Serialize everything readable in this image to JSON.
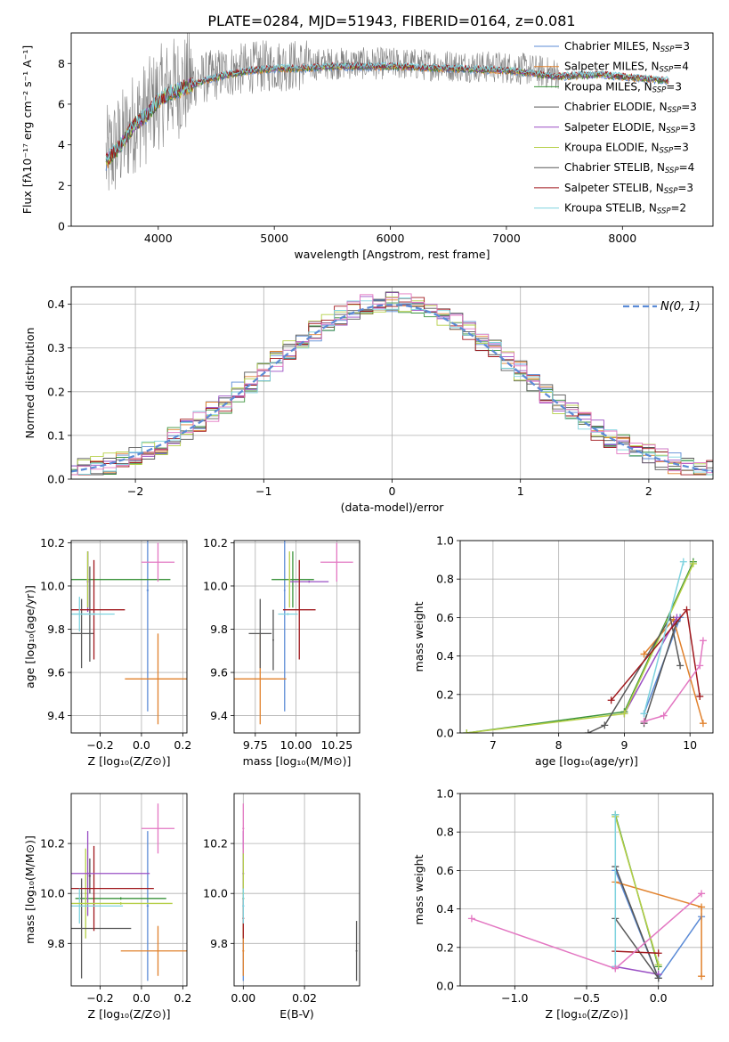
{
  "title": "PLATE=0284, MJD=51943, FIBERID=0164, z=0.081",
  "colors": {
    "chabrier_miles": "#5b8bd6",
    "salpeter_miles": "#e1812c",
    "kroupa_miles": "#3a923a",
    "chabrier_elodie": "#555555",
    "salpeter_elodie": "#9a4fc4",
    "kroupa_elodie": "#b5cf47",
    "chabrier_stelib": "#595959",
    "salpeter_stelib": "#a0181d",
    "kroupa_stelib": "#7fd3df",
    "pink": "#e377c2",
    "grid": "#b0b0b0",
    "spectrum_data": "#808080",
    "gaussian": "#5b8bd6"
  },
  "chart_data": [
    {
      "id": "spectrum",
      "type": "line",
      "xlabel": "wavelength [Angstrom, rest frame]",
      "ylabel": "Flux [fλ10⁻¹⁷ erg cm⁻² s⁻¹ A⁻¹]",
      "xlim": [
        3250,
        8780
      ],
      "ylim": [
        0,
        9.5
      ],
      "xticks": [
        4000,
        5000,
        6000,
        7000,
        8000
      ],
      "yticks": [
        0,
        2,
        4,
        6,
        8
      ],
      "grid": false,
      "legend_position": "top-right",
      "legend": [
        {
          "label": "Chabrier MILES, N",
          "sub": "SSP",
          "value": "=3"
        },
        {
          "label": "Salpeter MILES, N",
          "sub": "SSP",
          "value": "=4"
        },
        {
          "label": "Kroupa MILES, N",
          "sub": "SSP",
          "value": "=3"
        },
        {
          "label": "Chabrier ELODIE, N",
          "sub": "SSP",
          "value": "=3"
        },
        {
          "label": "Salpeter ELODIE, N",
          "sub": "SSP",
          "value": "=3"
        },
        {
          "label": "Kroupa ELODIE, N",
          "sub": "SSP",
          "value": "=3"
        },
        {
          "label": "Chabrier STELIB, N",
          "sub": "SSP",
          "value": "=4"
        },
        {
          "label": "Salpeter STELIB, N",
          "sub": "SSP",
          "value": "=3"
        },
        {
          "label": "Kroupa STELIB, N",
          "sub": "SSP",
          "value": "=2"
        }
      ],
      "continuum": {
        "wavelength": [
          3550,
          3700,
          3800,
          3900,
          4000,
          4100,
          4200,
          4400,
          4600,
          4800,
          5000,
          5200,
          5500,
          6000,
          6500,
          7000,
          7200,
          7400,
          7800,
          8200,
          8400
        ],
        "flux": [
          3.3,
          4.3,
          5.2,
          5.6,
          6.3,
          6.7,
          6.9,
          7.3,
          7.6,
          7.8,
          7.9,
          7.9,
          8.0,
          8.0,
          7.9,
          7.8,
          7.7,
          7.5,
          7.6,
          7.4,
          7.3
        ]
      },
      "data_range": [
        3550,
        7450
      ],
      "model_range": [
        3550,
        8400
      ]
    },
    {
      "id": "residuals",
      "type": "line",
      "xlabel": "(data-model)/error",
      "ylabel": "Normed distribution",
      "xlim": [
        -2.5,
        2.5
      ],
      "ylim": [
        0,
        0.44
      ],
      "xticks": [
        -2,
        -1,
        0,
        1,
        2
      ],
      "yticks": [
        0.0,
        0.1,
        0.2,
        0.3,
        0.4
      ],
      "grid": true,
      "legend_position": "top-right",
      "gaussian_label": "N(0, 1)",
      "bin_width": 0.1
    },
    {
      "id": "age_vs_Z",
      "type": "scatter",
      "xlabel": "Z [log₁₀(Z/Z⊙)]",
      "ylabel": "age  [log₁₀(age/yr)]",
      "xlim": [
        -0.34,
        0.22
      ],
      "ylim": [
        9.32,
        10.21
      ],
      "xticks": [
        -0.2,
        0.0,
        0.2
      ],
      "yticks": [
        9.4,
        9.6,
        9.8,
        10.0,
        10.2
      ],
      "grid": true,
      "points": [
        {
          "model": "chabrier_miles",
          "x": 0.03,
          "y": 9.98,
          "xerr": 0.005,
          "yerr": 0.56
        },
        {
          "model": "salpeter_miles",
          "x": 0.08,
          "y": 9.57,
          "xerr": 0.16,
          "yerr": 0.21
        },
        {
          "model": "kroupa_miles",
          "x": -0.26,
          "y": 10.03,
          "xerr": 0.4,
          "yerr": 0.13
        },
        {
          "model": "chabrier_elodie",
          "x": -0.25,
          "y": 9.87,
          "xerr": 0.005,
          "yerr": 0.22
        },
        {
          "model": "salpeter_elodie",
          "x": -0.26,
          "y": 10.02,
          "xerr": 0.005,
          "yerr": 0.14
        },
        {
          "model": "kroupa_elodie",
          "x": -0.26,
          "y": 10.03,
          "xerr": 0.005,
          "yerr": 0.13
        },
        {
          "model": "chabrier_stelib",
          "x": -0.29,
          "y": 9.78,
          "xerr": 0.06,
          "yerr": 0.16
        },
        {
          "model": "salpeter_stelib",
          "x": -0.23,
          "y": 9.89,
          "xerr": 0.15,
          "yerr": 0.23
        },
        {
          "model": "kroupa_stelib",
          "x": -0.3,
          "y": 9.87,
          "xerr": 0.07,
          "yerr": 0.08
        },
        {
          "model": "kroupa_stelib",
          "x": -0.23,
          "y": 9.87,
          "xerr": 0.1,
          "yerr": 0.005
        },
        {
          "model": "pink",
          "x": 0.08,
          "y": 10.11,
          "xerr": 0.08,
          "yerr": 0.09
        }
      ]
    },
    {
      "id": "age_vs_mass",
      "type": "scatter",
      "xlabel": "mass [log₁₀(M/M⊙)]",
      "ylabel": "",
      "xlim": [
        9.62,
        10.39
      ],
      "ylim": [
        9.32,
        10.21
      ],
      "xticks": [
        9.75,
        10.0,
        10.25
      ],
      "yticks": [
        9.4,
        9.6,
        9.8,
        10.0,
        10.2
      ],
      "grid": true,
      "points": [
        {
          "model": "chabrier_miles",
          "x": 9.93,
          "y": 9.98,
          "xerr": 0.005,
          "yerr": 0.56
        },
        {
          "model": "salpeter_miles",
          "x": 9.78,
          "y": 9.57,
          "xerr": 0.16,
          "yerr": 0.21
        },
        {
          "model": "kroupa_miles",
          "x": 9.98,
          "y": 10.03,
          "xerr": 0.13,
          "yerr": 0.13
        },
        {
          "model": "chabrier_elodie",
          "x": 9.86,
          "y": 9.75,
          "xerr": 0.005,
          "yerr": 0.14
        },
        {
          "model": "salpeter_elodie",
          "x": 10.08,
          "y": 10.02,
          "xerr": 0.12,
          "yerr": 0.005
        },
        {
          "model": "kroupa_elodie",
          "x": 9.96,
          "y": 10.03,
          "xerr": 0.005,
          "yerr": 0.13
        },
        {
          "model": "chabrier_stelib",
          "x": 9.78,
          "y": 9.78,
          "xerr": 0.07,
          "yerr": 0.16
        },
        {
          "model": "salpeter_stelib",
          "x": 10.02,
          "y": 9.89,
          "xerr": 0.1,
          "yerr": 0.23
        },
        {
          "model": "kroupa_stelib",
          "x": 9.95,
          "y": 9.87,
          "xerr": 0.06,
          "yerr": 0.005
        },
        {
          "model": "pink",
          "x": 10.25,
          "y": 10.11,
          "xerr": 0.1,
          "yerr": 0.09
        }
      ]
    },
    {
      "id": "weight_vs_age",
      "type": "line",
      "xlabel": "age  [log₁₀(age/yr)]",
      "ylabel": "mass weight",
      "xlim": [
        6.5,
        10.35
      ],
      "ylim": [
        0,
        1.0
      ],
      "xticks": [
        7,
        8,
        9,
        10
      ],
      "yticks": [
        0.0,
        0.2,
        0.4,
        0.6,
        0.8,
        1.0
      ],
      "grid": true,
      "series": [
        {
          "model": "chabrier_miles",
          "x": [
            9.3,
            9.85
          ],
          "y": [
            0.1,
            0.6
          ]
        },
        {
          "model": "salpeter_miles",
          "x": [
            9.3,
            9.75,
            10.2
          ],
          "y": [
            0.41,
            0.59,
            0.05
          ]
        },
        {
          "model": "kroupa_miles",
          "x": [
            6.6,
            9.0,
            10.05
          ],
          "y": [
            0.0,
            0.11,
            0.89
          ]
        },
        {
          "model": "chabrier_elodie",
          "x": [
            9.3,
            9.8
          ],
          "y": [
            0.05,
            0.58
          ]
        },
        {
          "model": "salpeter_elodie",
          "x": [
            9.0,
            9.8
          ],
          "y": [
            0.1,
            0.6
          ]
        },
        {
          "model": "kroupa_elodie",
          "x": [
            6.6,
            9.0,
            10.05
          ],
          "y": [
            0.0,
            0.1,
            0.88
          ]
        },
        {
          "model": "chabrier_stelib",
          "x": [
            8.45,
            8.7,
            9.7,
            9.85
          ],
          "y": [
            0.0,
            0.04,
            0.6,
            0.35
          ]
        },
        {
          "model": "salpeter_stelib",
          "x": [
            8.8,
            9.95,
            10.15
          ],
          "y": [
            0.17,
            0.64,
            0.19
          ]
        },
        {
          "model": "kroupa_stelib",
          "x": [
            9.3,
            9.9
          ],
          "y": [
            0.1,
            0.89
          ]
        },
        {
          "model": "pink",
          "x": [
            9.3,
            9.6,
            10.15,
            10.2
          ],
          "y": [
            0.06,
            0.09,
            0.35,
            0.48
          ]
        }
      ]
    },
    {
      "id": "mass_vs_Z",
      "type": "scatter",
      "xlabel": "Z [log₁₀(Z/Z⊙)]",
      "ylabel": "mass [log₁₀(M/M⊙)]",
      "xlim": [
        -0.34,
        0.22
      ],
      "ylim": [
        9.63,
        10.4
      ],
      "xticks": [
        -0.2,
        0.0,
        0.2
      ],
      "yticks": [
        9.8,
        10.0,
        10.2
      ],
      "grid": true,
      "points": [
        {
          "model": "chabrier_miles",
          "x": 0.03,
          "y": 9.95,
          "xerr": 0.005,
          "yerr": 0.3
        },
        {
          "model": "salpeter_miles",
          "x": 0.08,
          "y": 9.77,
          "xerr": 0.18,
          "yerr": 0.1
        },
        {
          "model": "kroupa_miles",
          "x": -0.1,
          "y": 9.98,
          "xerr": 0.22,
          "yerr": 0.005
        },
        {
          "model": "chabrier_elodie",
          "x": -0.25,
          "y": 10.07,
          "xerr": 0.005,
          "yerr": 0.07
        },
        {
          "model": "salpeter_elodie",
          "x": -0.26,
          "y": 10.08,
          "xerr": 0.005,
          "yerr": 0.17
        },
        {
          "model": "kroupa_elodie",
          "x": -0.27,
          "y": 10.0,
          "xerr": 0.005,
          "yerr": 0.18
        },
        {
          "model": "chabrier_stelib",
          "x": -0.29,
          "y": 9.86,
          "xerr": 0.24,
          "yerr": 0.2
        },
        {
          "model": "salpeter_stelib",
          "x": -0.23,
          "y": 10.02,
          "xerr": 0.29,
          "yerr": 0.17
        },
        {
          "model": "kroupa_stelib",
          "x": -0.3,
          "y": 9.95,
          "xerr": 0.21,
          "yerr": 0.07
        },
        {
          "model": "salpeter_elodie",
          "x": -0.26,
          "y": 10.08,
          "xerr": 0.3,
          "yerr": 0.005
        },
        {
          "model": "kroupa_elodie",
          "x": -0.1,
          "y": 9.96,
          "xerr": 0.25,
          "yerr": 0.005
        },
        {
          "model": "pink",
          "x": 0.08,
          "y": 10.26,
          "xerr": 0.08,
          "yerr": 0.1
        }
      ]
    },
    {
      "id": "mass_vs_ebv",
      "type": "scatter",
      "xlabel": "E(B-V)",
      "ylabel": "",
      "xlim": [
        -0.003,
        0.038
      ],
      "ylim": [
        9.63,
        10.4
      ],
      "xticks": [
        0.0,
        0.02
      ],
      "yticks": [
        9.8,
        10.0,
        10.2
      ],
      "grid": true,
      "points": [
        {
          "model": "chabrier_miles",
          "x": 0.0,
          "y": 9.95,
          "xerr": 0.0003,
          "yerr": 0.3
        },
        {
          "model": "salpeter_miles",
          "x": 0.0,
          "y": 9.77,
          "xerr": 0.0003,
          "yerr": 0.1
        },
        {
          "model": "kroupa_miles",
          "x": 0.0,
          "y": 9.98,
          "xerr": 0.0003,
          "yerr": 0.1
        },
        {
          "model": "salpeter_elodie",
          "x": 0.0,
          "y": 10.08,
          "xerr": 0.0003,
          "yerr": 0.17
        },
        {
          "model": "kroupa_elodie",
          "x": 0.0,
          "y": 10.0,
          "xerr": 0.0003,
          "yerr": 0.18
        },
        {
          "model": "salpeter_stelib",
          "x": 0.0,
          "y": 9.9,
          "xerr": 0.0003,
          "yerr": 0.08
        },
        {
          "model": "kroupa_stelib",
          "x": 0.0,
          "y": 9.95,
          "xerr": 0.0003,
          "yerr": 0.07
        },
        {
          "model": "pink",
          "x": 0.0,
          "y": 10.26,
          "xerr": 0.0003,
          "yerr": 0.1
        },
        {
          "model": "chabrier_stelib",
          "x": 0.037,
          "y": 9.77,
          "xerr": 0.0003,
          "yerr": 0.12
        }
      ]
    },
    {
      "id": "weight_vs_Z",
      "type": "line",
      "xlabel": "Z [log₁₀(Z/Z⊙)]",
      "ylabel": "mass weight",
      "xlim": [
        -1.38,
        0.38
      ],
      "ylim": [
        0,
        1.0
      ],
      "xticks": [
        -1.0,
        -0.5,
        0.0
      ],
      "yticks": [
        0.0,
        0.2,
        0.4,
        0.6,
        0.8,
        1.0
      ],
      "grid": true,
      "series": [
        {
          "model": "chabrier_miles",
          "x": [
            -0.3,
            0.0,
            0.3
          ],
          "y": [
            0.6,
            0.04,
            0.36
          ]
        },
        {
          "model": "salpeter_miles",
          "x": [
            -0.3,
            0.3,
            0.3
          ],
          "y": [
            0.54,
            0.41,
            0.05
          ]
        },
        {
          "model": "kroupa_miles",
          "x": [
            -0.3,
            0.0
          ],
          "y": [
            0.89,
            0.1
          ]
        },
        {
          "model": "chabrier_elodie",
          "x": [
            -0.3,
            0.0
          ],
          "y": [
            0.62,
            0.04
          ]
        },
        {
          "model": "salpeter_elodie",
          "x": [
            -0.3,
            0.0
          ],
          "y": [
            0.1,
            0.06
          ]
        },
        {
          "model": "kroupa_elodie",
          "x": [
            -0.3,
            0.0
          ],
          "y": [
            0.88,
            0.11
          ]
        },
        {
          "model": "chabrier_stelib",
          "x": [
            -0.3,
            0.0
          ],
          "y": [
            0.35,
            0.04
          ]
        },
        {
          "model": "salpeter_stelib",
          "x": [
            -0.3,
            0.0
          ],
          "y": [
            0.18,
            0.17
          ]
        },
        {
          "model": "kroupa_stelib",
          "x": [
            -0.3,
            -0.3
          ],
          "y": [
            0.1,
            0.89
          ]
        },
        {
          "model": "pink",
          "x": [
            -1.3,
            -0.3,
            0.3
          ],
          "y": [
            0.35,
            0.09,
            0.48
          ]
        }
      ]
    }
  ]
}
